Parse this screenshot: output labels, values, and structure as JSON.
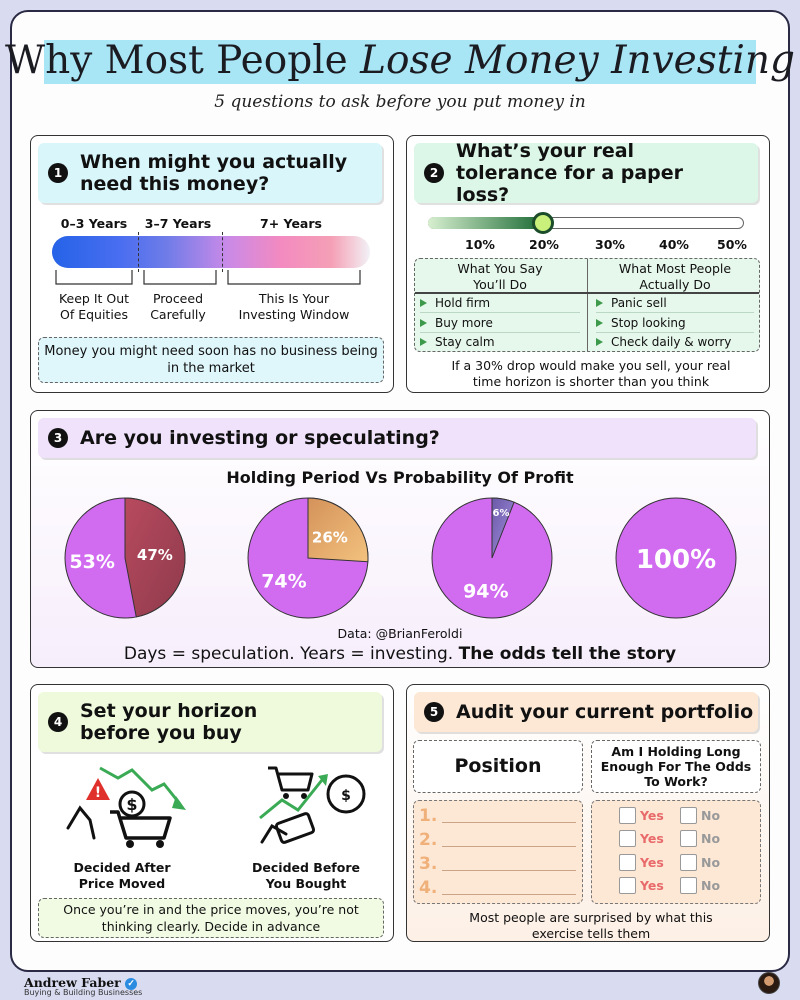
{
  "header": {
    "title_main": "Why Most People ",
    "title_emph": "Lose Money Investing",
    "subtitle": "5 questions to ask before you put money in"
  },
  "q1": {
    "num": "1",
    "title": "When might you actually need this money?",
    "ranges": [
      "0–3 Years",
      "3–7 Years",
      "7+ Years"
    ],
    "descs": [
      "Keep It Out Of Equities",
      "Proceed Carefully",
      "This Is Your Investing Window"
    ],
    "note": "Money you might need soon has no business being in the market"
  },
  "q2": {
    "num": "2",
    "title": "What’s your real tolerance for a paper loss?",
    "slider_value_pct": 20,
    "ticks": [
      "10%",
      "20%",
      "30%",
      "40%",
      "50%"
    ],
    "col_say": "What You Say You’ll Do",
    "col_do": "What Most People Actually Do",
    "say_items": [
      "Hold firm",
      "Buy more",
      "Stay calm"
    ],
    "do_items": [
      "Panic sell",
      "Stop looking",
      "Check daily & worry"
    ],
    "note": "If a 30% drop would make you sell, your real time horizon is shorter than you think"
  },
  "q3": {
    "num": "3",
    "title": "Are you investing or speculating?",
    "chart_title": "Holding Period Vs Probability Of Profit",
    "source": "Data: @BrianFeroldi",
    "tagline_a": "Days = speculation. Years = investing. ",
    "tagline_b": "The odds tell the story"
  },
  "chart_data": {
    "type": "pie",
    "title": "Holding Period Vs Probability Of Profit",
    "source": "Data: @BrianFeroldi",
    "pies": [
      {
        "profit": 53,
        "loss": 47
      },
      {
        "profit": 74,
        "loss": 26
      },
      {
        "profit": 94,
        "loss": 6
      },
      {
        "profit": 100,
        "loss": 0
      }
    ]
  },
  "q4": {
    "num": "4",
    "title": "Set your horizon before you buy",
    "left_label": "Decided After Price Moved",
    "right_label": "Decided Before You Bought",
    "note": "Once you’re in and the price moves, you’re not thinking clearly. Decide in advance"
  },
  "q5": {
    "num": "5",
    "title": "Audit your current portfolio",
    "position_label": "Position",
    "question_label": "Am I Holding Long Enough For The Odds To Work?",
    "rows": [
      "1.",
      "2.",
      "3.",
      "4."
    ],
    "yes": "Yes",
    "no": "No",
    "note": "Most people are surprised by what this exercise tells them"
  },
  "footer": {
    "name": "Andrew Faber",
    "tagline": "Buying & Building Businesses"
  },
  "colors": {
    "purple": "#d16bf0",
    "loss": "#b84a5e",
    "accent_blue": "#a9e6f5"
  }
}
